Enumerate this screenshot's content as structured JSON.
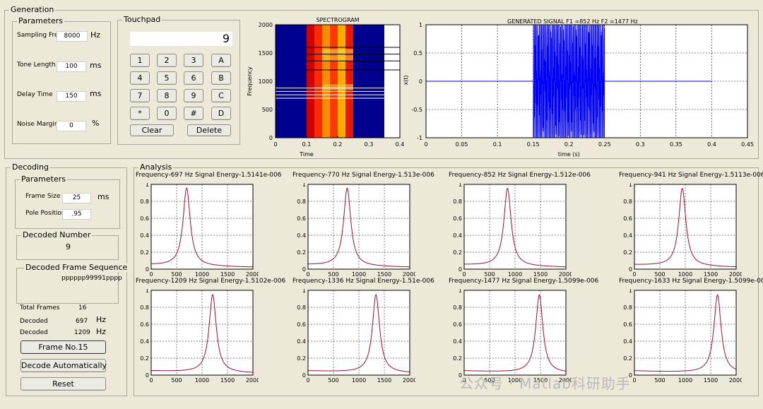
{
  "generation": {
    "title": "Generation",
    "parameters": {
      "title": "Parameters",
      "sampling_label": "Sampling Frec",
      "sampling_value": "8000",
      "sampling_unit": "Hz",
      "tone_label": "Tone Length",
      "tone_value": "100",
      "tone_unit": "ms",
      "delay_label": "Delay Time",
      "delay_value": "150",
      "delay_unit": "ms",
      "noise_label": "Noise Margin",
      "noise_value": "0",
      "noise_unit": "%"
    },
    "touchpad": {
      "title": "Touchpad",
      "display": "9",
      "keys": [
        "1",
        "2",
        "3",
        "A",
        "4",
        "5",
        "6",
        "B",
        "7",
        "8",
        "9",
        "C",
        "*",
        "0",
        "#",
        "D"
      ],
      "clear_label": "Clear",
      "delete_label": "Delete"
    }
  },
  "spectrogram": {
    "title": "SPECTROGRAM",
    "ylabel": "Frequency",
    "xlabel": "Time",
    "yticks": [
      "0",
      "500",
      "1000",
      "1500",
      "2000"
    ],
    "xticks": [
      "0",
      "0.1",
      "0.2",
      "0.3",
      "0.4"
    ]
  },
  "signal": {
    "title": "GENERATED SIGNAL  F1 =852 Hz     F2 =1477 Hz",
    "ylabel": "x(t)",
    "xlabel": "time (s)",
    "yticks": [
      "-1",
      "-0.5",
      "0",
      "0.5",
      "1"
    ],
    "xticks": [
      "0",
      "0.05",
      "0.1",
      "0.15",
      "0.2",
      "0.25",
      "0.3",
      "0.35",
      "0.4",
      "0.45"
    ]
  },
  "decoding": {
    "title": "Decoding",
    "parameters": {
      "title": "Parameters",
      "frame_size_label": "Frame Size",
      "frame_size_value": "25",
      "frame_size_unit": "ms",
      "pole_label": "Pole Position",
      "pole_value": ".95"
    },
    "decoded_number": {
      "title": "Decoded Number",
      "value": "9"
    },
    "frame_sequence": {
      "title": "Decoded Frame Sequence",
      "value": "pppppp99991pppp"
    },
    "total_frames_label": "Total Frames",
    "total_frames_value": "16",
    "decoded1_label": "Decoded",
    "decoded1_value": "697",
    "decoded1_unit": "Hz",
    "decoded2_label": "Decoded",
    "decoded2_value": "1209",
    "decoded2_unit": "Hz",
    "frame_button": "Frame No.15",
    "auto_button": "Decode Automatically",
    "reset_button": "Reset"
  },
  "analysis": {
    "title": "Analysis",
    "xticks": [
      "0",
      "500",
      "1000",
      "1500",
      "2000"
    ],
    "yticks": [
      "0",
      "0.2",
      "0.4",
      "0.6",
      "0.8",
      "1"
    ],
    "plots": [
      {
        "title": "Frequency-697 Hz    Signal Energy-1.5141e-006"
      },
      {
        "title": "Frequency-770 Hz    Signal Energy-1.513e-006"
      },
      {
        "title": "Frequency-852 Hz    Signal Energy-1.512e-006"
      },
      {
        "title": "Frequency-941 Hz    Signal Energy-1.5113e-006"
      },
      {
        "title": "Frequency-1209 Hz    Signal Energy-1.5102e-006"
      },
      {
        "title": "Frequency-1336 Hz    Signal Energy-1.51e-006"
      },
      {
        "title": "Frequency-1477 Hz    Signal Energy-1.5099e-006"
      },
      {
        "title": "Frequency-1633 Hz    Signal Energy-1.5099e-006"
      }
    ]
  },
  "chart_data": [
    {
      "type": "heatmap",
      "title": "SPECTROGRAM",
      "xlabel": "Time",
      "ylabel": "Frequency",
      "xlim": [
        0,
        0.4
      ],
      "ylim": [
        0,
        2000
      ],
      "columns": [
        {
          "t0": 0.0,
          "t1": 0.1,
          "color": "#00008f"
        },
        {
          "t0": 0.1,
          "t1": 0.125,
          "color": "#d00000"
        },
        {
          "t0": 0.125,
          "t1": 0.15,
          "color": "#ff2a00"
        },
        {
          "t0": 0.15,
          "t1": 0.175,
          "color": "#ff8c00"
        },
        {
          "t0": 0.175,
          "t1": 0.2,
          "color": "#ff3800"
        },
        {
          "t0": 0.2,
          "t1": 0.225,
          "color": "#ffaa00"
        },
        {
          "t0": 0.225,
          "t1": 0.25,
          "color": "#e81800"
        },
        {
          "t0": 0.25,
          "t1": 0.35,
          "color": "#00008f"
        }
      ],
      "lines_black": [
        1600,
        1480,
        1360,
        1200
      ],
      "lines_white": [
        880,
        820,
        760,
        700
      ]
    },
    {
      "type": "line",
      "title": "GENERATED SIGNAL  F1 =852 Hz     F2 =1477 Hz",
      "xlabel": "time (s)",
      "ylabel": "x(t)",
      "xlim": [
        0,
        0.45
      ],
      "ylim": [
        -1,
        1
      ],
      "signal_start": 0.15,
      "signal_end": 0.25,
      "signal_trace_end": 0.4,
      "f1": 852,
      "f2": 1477,
      "color": "#0000ff"
    },
    {
      "type": "line",
      "xlim": [
        0,
        2000
      ],
      "ylim": [
        0,
        1
      ],
      "color": "#a0102a",
      "series": [
        {
          "peak": 697
        },
        {
          "peak": 770
        },
        {
          "peak": 852
        },
        {
          "peak": 941
        },
        {
          "peak": 1209
        },
        {
          "peak": 1336
        },
        {
          "peak": 1477
        },
        {
          "peak": 1633
        }
      ]
    }
  ],
  "watermark": "公众号 · Matlab科研助手"
}
